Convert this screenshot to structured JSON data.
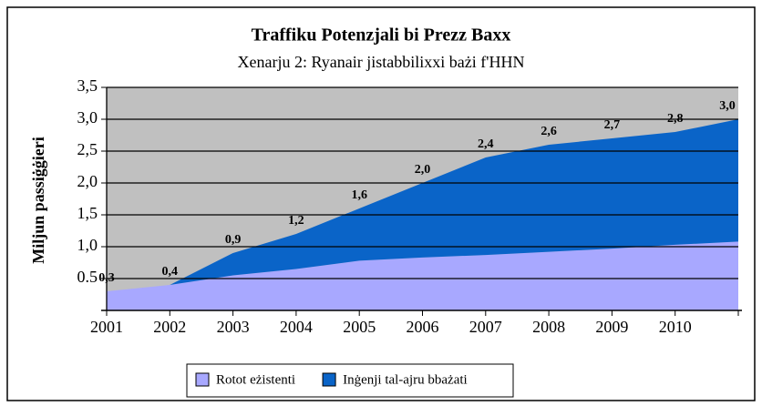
{
  "chart_data": {
    "type": "stacked-area",
    "title": "Traffiku Potenzjali bi Prezz Baxx",
    "subtitle": "Xenarju 2: Ryanair jistabbilixxi bażi f'HHN",
    "y_label": "Miljun passiġġieri",
    "categories": [
      "2001",
      "2002",
      "2003",
      "2004",
      "2005",
      "2006",
      "2007",
      "2008",
      "2009",
      "2010",
      null
    ],
    "series": [
      {
        "name": "Rotot eżistenti",
        "color": "#a8a8ff",
        "values": [
          0.3,
          0.4,
          0.55,
          0.65,
          0.78,
          0.83,
          0.87,
          0.92,
          0.97,
          1.03,
          1.08
        ]
      },
      {
        "name": "Inġenji tal-ajru bbażati",
        "color": "#0a64c8",
        "values": [
          0,
          0,
          0.35,
          0.55,
          0.82,
          1.17,
          1.53,
          1.68,
          1.73,
          1.77,
          1.92
        ]
      }
    ],
    "totals": [
      0.3,
      0.4,
      0.9,
      1.2,
      1.6,
      2.0,
      2.4,
      2.6,
      2.7,
      2.8,
      3.0
    ],
    "total_labels": [
      "0,3",
      "0,4",
      "0,9",
      "1,2",
      "1,6",
      "2,0",
      "2,4",
      "2,6",
      "2,7",
      "2,8",
      "3,0"
    ],
    "ylim": [
      0,
      3.5
    ],
    "yticks": [
      {
        "value": 0.5,
        "label": "0.5"
      },
      {
        "value": 1,
        "label": "1,0"
      },
      {
        "value": 1.5,
        "label": "1,5"
      },
      {
        "value": 2,
        "label": "2,0"
      },
      {
        "value": 2.5,
        "label": "2,5"
      },
      {
        "value": 3,
        "label": "3,0"
      },
      {
        "value": 3.5,
        "label": "3,5"
      }
    ],
    "plot_background": "#c0c0c0",
    "grid": true,
    "legend": "bottom"
  }
}
